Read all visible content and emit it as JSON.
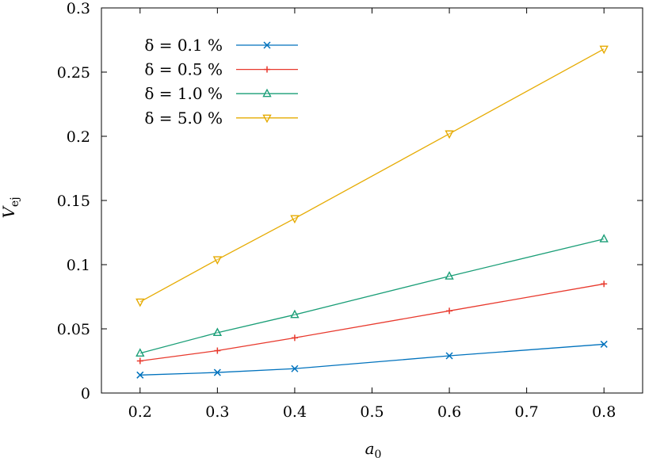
{
  "chart_data": {
    "type": "line",
    "title": "",
    "xlabel": "a0",
    "ylabel": "Vej",
    "xlim": [
      0.15,
      0.85
    ],
    "ylim": [
      0,
      0.3
    ],
    "x_ticks": [
      "0.2",
      "0.3",
      "0.4",
      "0.5",
      "0.6",
      "0.7",
      "0.8"
    ],
    "y_ticks": [
      "0",
      "0.05",
      "0.1",
      "0.15",
      "0.2",
      "0.25",
      "0.3"
    ],
    "grid": false,
    "legend_position": "top-left",
    "x": [
      0.2,
      0.3,
      0.4,
      0.6,
      0.8
    ],
    "series": [
      {
        "name": "δ = 0.1 %",
        "color": "#0072bd",
        "marker": "x",
        "values": [
          0.014,
          0.016,
          0.019,
          0.029,
          0.038
        ]
      },
      {
        "name": "δ = 0.5 %",
        "color": "#e8392d",
        "marker": "plus",
        "values": [
          0.025,
          0.033,
          0.043,
          0.064,
          0.085
        ]
      },
      {
        "name": "δ = 1.0 %",
        "color": "#1a9e77",
        "marker": "triangle-up",
        "values": [
          0.031,
          0.047,
          0.061,
          0.091,
          0.12
        ]
      },
      {
        "name": "δ = 5.0 %",
        "color": "#e6ab02",
        "marker": "triangle-down",
        "values": [
          0.071,
          0.104,
          0.136,
          0.202,
          0.268
        ]
      }
    ]
  }
}
